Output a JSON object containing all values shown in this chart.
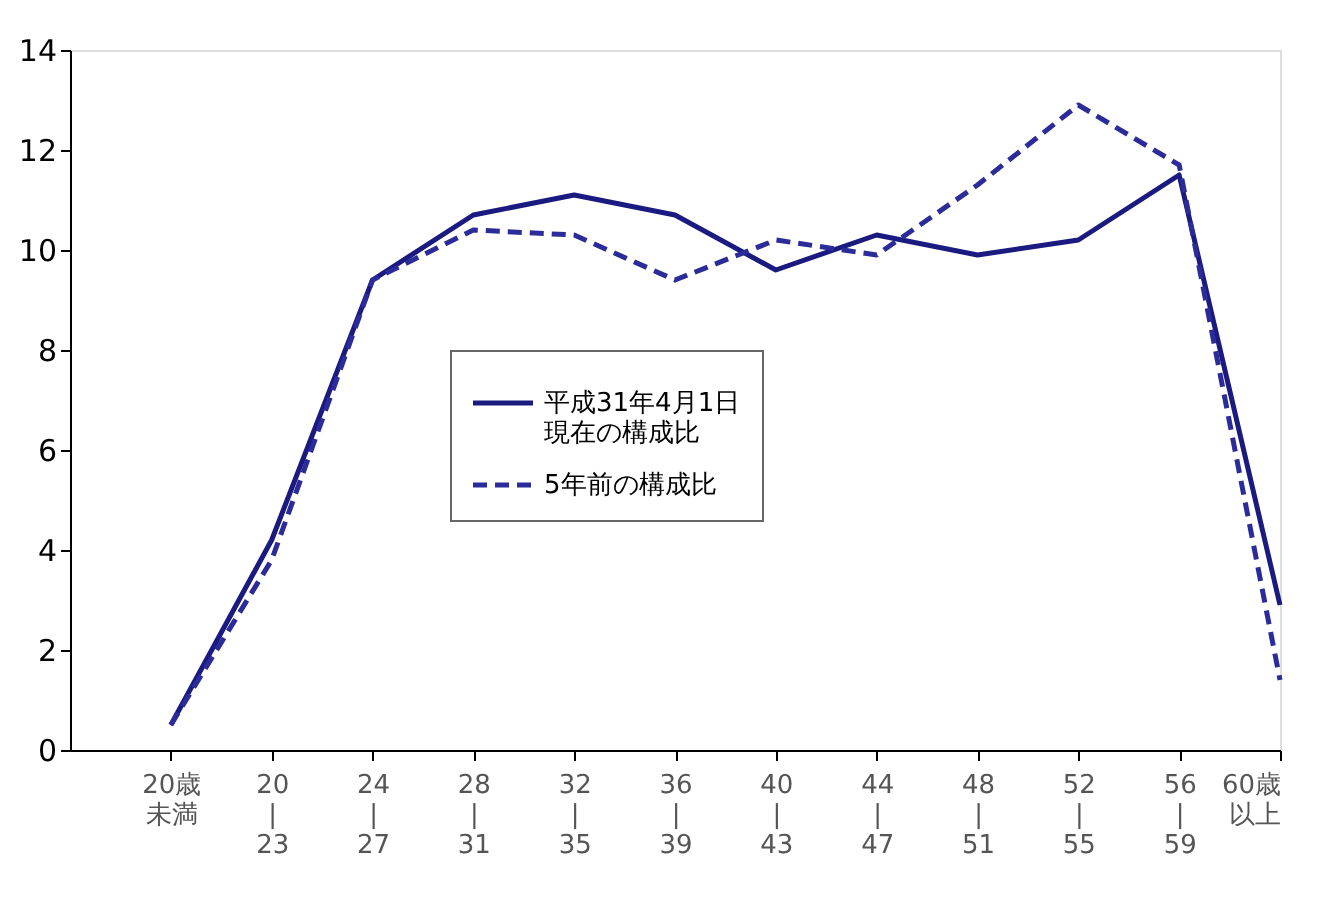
{
  "chart_data": {
    "type": "line",
    "categories": [
      "20歳未満",
      "20\n|\n23",
      "24\n|\n27",
      "28\n|\n31",
      "32\n|\n35",
      "36\n|\n39",
      "40\n|\n43",
      "44\n|\n47",
      "48\n|\n51",
      "52\n|\n55",
      "56\n|\n59",
      "60歳以上"
    ],
    "series": [
      {
        "name": "平成31年4月1日現在の構成比",
        "color": "#1a1a80",
        "line_style": "solid",
        "values": [
          0.5,
          4.2,
          9.4,
          10.7,
          11.1,
          10.7,
          9.6,
          10.3,
          9.9,
          10.2,
          11.5,
          2.9
        ]
      },
      {
        "name": "5年前の構成比",
        "color": "#2b2b9a",
        "line_style": "dashed",
        "values": [
          0.5,
          3.8,
          9.4,
          10.4,
          10.3,
          9.4,
          10.2,
          9.9,
          11.3,
          12.9,
          11.7,
          1.4
        ]
      }
    ],
    "ylim": [
      0,
      14
    ],
    "yticks": [
      0,
      2,
      4,
      6,
      8,
      10,
      12,
      14
    ],
    "grid": false,
    "legend": "center",
    "marker": "none"
  }
}
